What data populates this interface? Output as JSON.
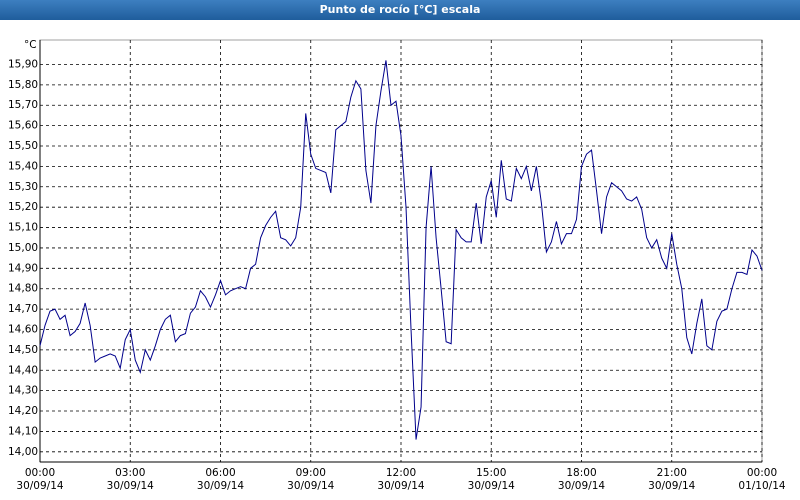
{
  "chart_data": {
    "type": "line",
    "title": "Punto de rocío [°C] escala",
    "y_label": "°C",
    "x": [
      0,
      10,
      20,
      30,
      40,
      50,
      60,
      70,
      80,
      90,
      100,
      110,
      120,
      130,
      140,
      150,
      160,
      170,
      180,
      190,
      200,
      210,
      220,
      230,
      240,
      250,
      260,
      270,
      280,
      290,
      300,
      310,
      320,
      330,
      340,
      350,
      360,
      370,
      380,
      390,
      400,
      410,
      420,
      430,
      440,
      450,
      460,
      470,
      480,
      490,
      500,
      510,
      520,
      530,
      540,
      550,
      560,
      570,
      580,
      590,
      600,
      610,
      620,
      630,
      640,
      650,
      660,
      670,
      680,
      690,
      700,
      710,
      720,
      730,
      740,
      750,
      760,
      770,
      780,
      790,
      800,
      810,
      820,
      830,
      840,
      850,
      860,
      870,
      880,
      890,
      900,
      910,
      920,
      930,
      940,
      950,
      960,
      970,
      980,
      990,
      1000,
      1010,
      1020,
      1030,
      1040,
      1050,
      1060,
      1070,
      1080,
      1090,
      1100,
      1110,
      1120,
      1130,
      1140,
      1150,
      1160,
      1170,
      1180,
      1190,
      1200,
      1210,
      1220,
      1230,
      1240,
      1250,
      1260,
      1270,
      1280,
      1290,
      1300,
      1310,
      1320,
      1330,
      1340,
      1350,
      1360,
      1370,
      1380,
      1390,
      1400,
      1410,
      1420,
      1430,
      1440
    ],
    "series": [
      {
        "name": "Punto de rocío",
        "color": "#00008b",
        "values": [
          14.52,
          14.62,
          14.69,
          14.7,
          14.65,
          14.67,
          14.57,
          14.59,
          14.63,
          14.73,
          14.62,
          14.44,
          14.46,
          14.47,
          14.48,
          14.47,
          14.41,
          14.55,
          14.6,
          14.45,
          14.39,
          14.5,
          14.45,
          14.52,
          14.6,
          14.65,
          14.67,
          14.54,
          14.57,
          14.58,
          14.68,
          14.71,
          14.79,
          14.76,
          14.71,
          14.77,
          14.84,
          14.77,
          14.79,
          14.8,
          14.81,
          14.8,
          14.9,
          14.92,
          15.05,
          15.11,
          15.15,
          15.18,
          15.05,
          15.04,
          15.01,
          15.05,
          15.2,
          15.66,
          15.46,
          15.39,
          15.38,
          15.37,
          15.27,
          15.58,
          15.6,
          15.62,
          15.74,
          15.82,
          15.78,
          15.38,
          15.22,
          15.6,
          15.77,
          15.92,
          15.7,
          15.72,
          15.55,
          15.2,
          14.6,
          14.06,
          14.22,
          15.1,
          15.4,
          15.05,
          14.8,
          14.54,
          14.53,
          15.09,
          15.05,
          15.03,
          15.03,
          15.22,
          15.02,
          15.25,
          15.33,
          15.15,
          15.43,
          15.24,
          15.23,
          15.39,
          15.34,
          15.4,
          15.28,
          15.4,
          15.22,
          14.98,
          15.03,
          15.13,
          15.02,
          15.07,
          15.07,
          15.14,
          15.4,
          15.46,
          15.48,
          15.28,
          15.07,
          15.25,
          15.32,
          15.3,
          15.28,
          15.24,
          15.23,
          15.25,
          15.19,
          15.05,
          15.0,
          15.04,
          14.95,
          14.9,
          15.07,
          14.92,
          14.8,
          14.56,
          14.48,
          14.63,
          14.75,
          14.52,
          14.5,
          14.64,
          14.69,
          14.7,
          14.8,
          14.88,
          14.88,
          14.87,
          14.99,
          14.96,
          14.89
        ]
      }
    ],
    "xlim": [
      0,
      1440
    ],
    "xticks": [
      {
        "value": 0,
        "label": "00:00\n30/09/14"
      },
      {
        "value": 180,
        "label": "03:00\n30/09/14"
      },
      {
        "value": 360,
        "label": "06:00\n30/09/14"
      },
      {
        "value": 540,
        "label": "09:00\n30/09/14"
      },
      {
        "value": 720,
        "label": "12:00\n30/09/14"
      },
      {
        "value": 900,
        "label": "15:00\n30/09/14"
      },
      {
        "value": 1080,
        "label": "18:00\n30/09/14"
      },
      {
        "value": 1260,
        "label": "21:00\n30/09/14"
      },
      {
        "value": 1440,
        "label": "00:00\n01/10/14"
      }
    ],
    "ylim": [
      13.95,
      16.02
    ],
    "yticks": [
      {
        "value": 14.0,
        "label": "14,00"
      },
      {
        "value": 14.1,
        "label": "14,10"
      },
      {
        "value": 14.2,
        "label": "14,20"
      },
      {
        "value": 14.3,
        "label": "14,30"
      },
      {
        "value": 14.4,
        "label": "14,40"
      },
      {
        "value": 14.5,
        "label": "14,50"
      },
      {
        "value": 14.6,
        "label": "14,60"
      },
      {
        "value": 14.7,
        "label": "14,70"
      },
      {
        "value": 14.8,
        "label": "14,80"
      },
      {
        "value": 14.9,
        "label": "14,90"
      },
      {
        "value": 15.0,
        "label": "15,00"
      },
      {
        "value": 15.1,
        "label": "15,10"
      },
      {
        "value": 15.2,
        "label": "15,20"
      },
      {
        "value": 15.3,
        "label": "15,30"
      },
      {
        "value": 15.4,
        "label": "15,40"
      },
      {
        "value": 15.5,
        "label": "15,50"
      },
      {
        "value": 15.6,
        "label": "15,60"
      },
      {
        "value": 15.7,
        "label": "15,70"
      },
      {
        "value": 15.8,
        "label": "15,80"
      },
      {
        "value": 15.9,
        "label": "15,90"
      }
    ],
    "grid": true
  }
}
